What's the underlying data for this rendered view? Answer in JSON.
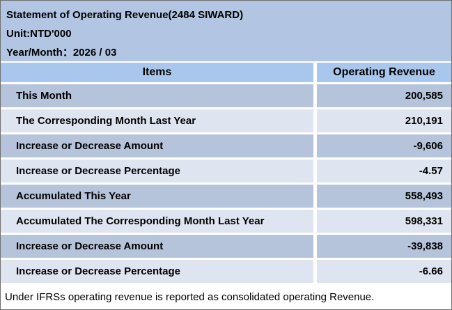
{
  "header": {
    "title": "Statement of Operating Revenue(2484 SIWARD)",
    "unit": "Unit:NTD'000",
    "period": "Year/Month：2026 / 03"
  },
  "table": {
    "columns": [
      "Items",
      "Operating Revenue"
    ],
    "rows": [
      {
        "item": "This Month",
        "value": "200,585"
      },
      {
        "item": "The Corresponding Month Last Year",
        "value": "210,191"
      },
      {
        "item": "Increase or Decrease Amount",
        "value": "-9,606"
      },
      {
        "item": "Increase or Decrease Percentage",
        "value": "-4.57"
      },
      {
        "item": "Accumulated This Year",
        "value": "558,493"
      },
      {
        "item": "Accumulated The Corresponding Month Last Year",
        "value": "598,331"
      },
      {
        "item": "Increase or Decrease Amount",
        "value": "-39,838"
      },
      {
        "item": "Increase or Decrease Percentage",
        "value": "-6.66"
      }
    ]
  },
  "footer": {
    "note": "Under IFRSs operating revenue is reported as consolidated operating Revenue."
  },
  "colors": {
    "banner_bg": "#b2c6e3",
    "header_row_bg": "#a9c6ec",
    "row_dark_bg": "#b5c4da",
    "row_light_bg": "#dee4f0",
    "border": "#6f6f6f",
    "text": "#000000"
  }
}
